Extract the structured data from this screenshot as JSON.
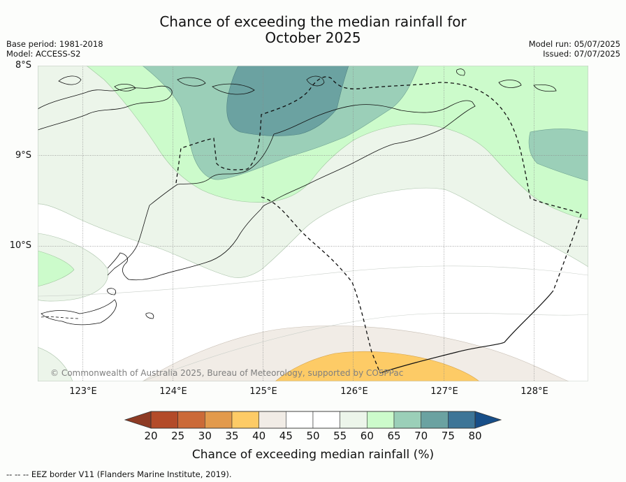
{
  "title_line1": "Chance of exceeding the median rainfall for",
  "title_line2": "October 2025",
  "base_period": "Base period: 1981-2018",
  "model": "Model: ACCESS-S2",
  "model_run": "Model run: 05/07/2025",
  "issued": "Issued: 07/07/2025",
  "latitudes": [
    "8°S",
    "9°S",
    "10°S"
  ],
  "longitudes": [
    "123°E",
    "124°E",
    "125°E",
    "126°E",
    "127°E",
    "128°E"
  ],
  "copyright": "© Commonwealth of Australia 2025, Bureau of Meteorology, supported by COSPPac",
  "colorbar": {
    "ticks": [
      "20",
      "25",
      "30",
      "35",
      "40",
      "45",
      "50",
      "55",
      "60",
      "65",
      "70",
      "75",
      "80"
    ],
    "label": "Chance of exceeding median rainfall (%)",
    "colors": [
      "#b34b29",
      "#cb6a38",
      "#e29a4c",
      "#fdcb66",
      "#f1ece6",
      "#ffffff",
      "#ffffff",
      "#ecf5ea",
      "#ccfbcb",
      "#9bcfb8",
      "#6ba2a1",
      "#3d7597"
    ],
    "under_color": "#8e3b24",
    "over_color": "#174e88"
  },
  "eez_note": "--  --  -- EEZ border V11 (Flanders Marine Institute, 2019)."
}
